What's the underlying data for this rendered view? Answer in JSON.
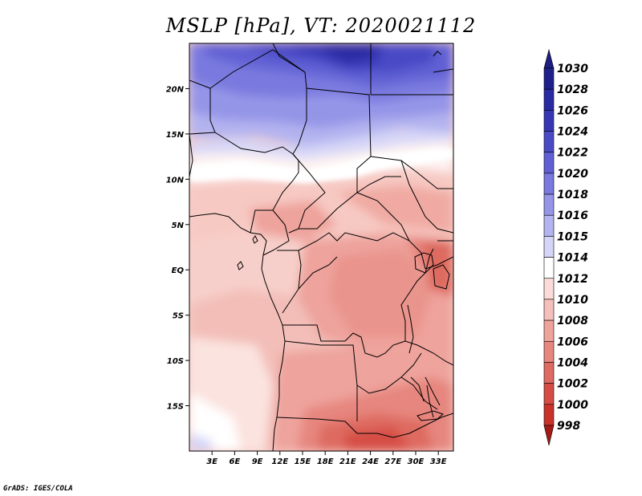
{
  "title": "MSLP [hPa], VT: 2020021112",
  "credit": "GrADS: IGES/COLA",
  "map": {
    "variable": "MSLP",
    "units": "hPa",
    "valid_time": "2020021112",
    "lon_range": [
      0,
      35
    ],
    "lat_range": [
      -20,
      25
    ],
    "lon_ticks": [
      {
        "value": 3,
        "label": "3E"
      },
      {
        "value": 6,
        "label": "6E"
      },
      {
        "value": 9,
        "label": "9E"
      },
      {
        "value": 12,
        "label": "12E"
      },
      {
        "value": 15,
        "label": "15E"
      },
      {
        "value": 18,
        "label": "18E"
      },
      {
        "value": 21,
        "label": "21E"
      },
      {
        "value": 24,
        "label": "24E"
      },
      {
        "value": 27,
        "label": "27E"
      },
      {
        "value": 30,
        "label": "30E"
      },
      {
        "value": 33,
        "label": "33E"
      }
    ],
    "lat_ticks": [
      {
        "value": 20,
        "label": "20N"
      },
      {
        "value": 15,
        "label": "15N"
      },
      {
        "value": 10,
        "label": "10N"
      },
      {
        "value": 5,
        "label": "5N"
      },
      {
        "value": 0,
        "label": "EQ"
      },
      {
        "value": -5,
        "label": "5S"
      },
      {
        "value": -10,
        "label": "10S"
      },
      {
        "value": -15,
        "label": "15S"
      }
    ]
  },
  "colorbar": {
    "levels": [
      {
        "label": "1030",
        "color": "#20208c"
      },
      {
        "label": "1028",
        "color": "#2a2aa2"
      },
      {
        "label": "1026",
        "color": "#3737b5"
      },
      {
        "label": "1024",
        "color": "#4a4ac6"
      },
      {
        "label": "1022",
        "color": "#6060d4"
      },
      {
        "label": "1020",
        "color": "#7979df"
      },
      {
        "label": "1018",
        "color": "#9595e8"
      },
      {
        "label": "1016",
        "color": "#b3b3f0"
      },
      {
        "label": "1015",
        "color": "#d5d5f7"
      },
      {
        "label": "1014",
        "color": "#ffffff"
      },
      {
        "label": "1012",
        "color": "#fbdcd9"
      },
      {
        "label": "1010",
        "color": "#f5c0bb"
      },
      {
        "label": "1008",
        "color": "#eea39c"
      },
      {
        "label": "1006",
        "color": "#e6867e"
      },
      {
        "label": "1004",
        "color": "#de6a61"
      },
      {
        "label": "1002",
        "color": "#d54d44"
      },
      {
        "label": "1000",
        "color": "#c9332a"
      },
      {
        "label": "998",
        "color": "#b71c17"
      }
    ],
    "top_arrow_color": "#1e1e82",
    "bottom_arrow_color": "#a61a15"
  }
}
